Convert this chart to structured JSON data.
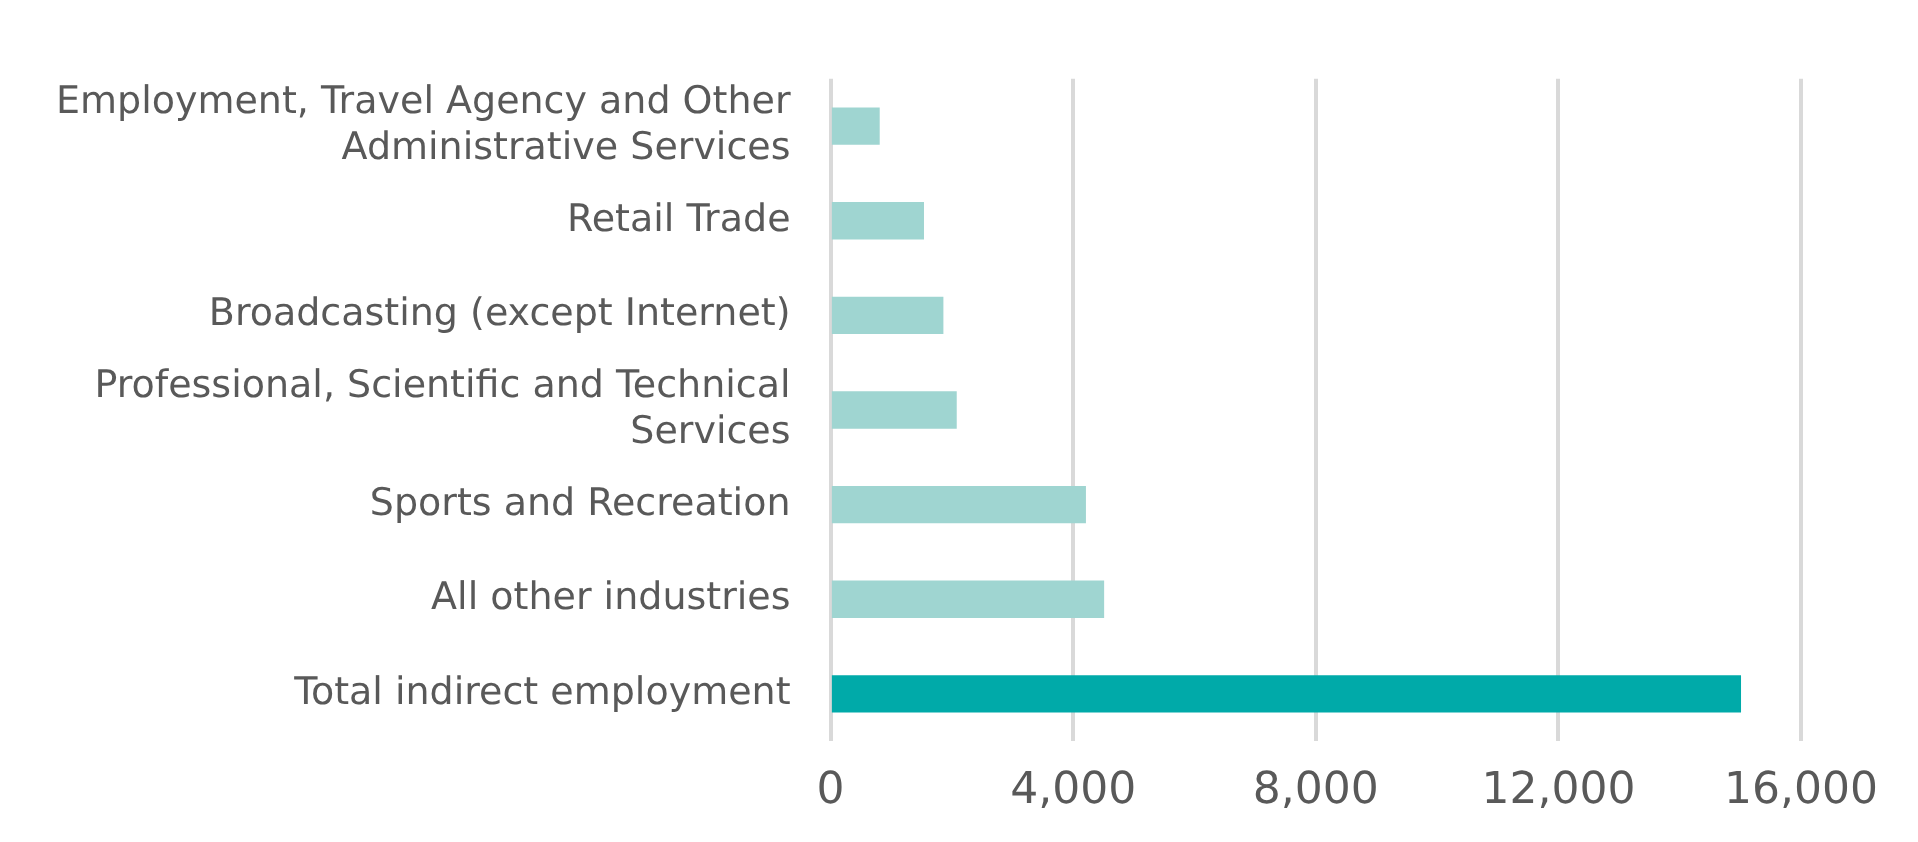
{
  "chart_data": {
    "type": "bar",
    "orientation": "horizontal",
    "categories": [
      "Employment, Travel Agency and Other Administrative Services",
      "Retail Trade",
      "Broadcasting (except Internet)",
      "Professional, Scientific and Technical Services",
      "Sports and Recreation",
      "All other industries",
      "Total indirect employment"
    ],
    "values": [
      800,
      1530,
      1850,
      2070,
      4200,
      4500,
      15000
    ],
    "colors": [
      "#9fd5d1",
      "#9fd5d1",
      "#9fd5d1",
      "#9fd5d1",
      "#9fd5d1",
      "#9fd5d1",
      "#00aaa9"
    ],
    "xlim": [
      0,
      16000
    ],
    "xticks": [
      0,
      {
        "value": 4000,
        "label": "4,000"
      },
      {
        "value": 8000,
        "label": "8,000"
      },
      {
        "value": 12000,
        "label": "12,000"
      },
      {
        "value": 16000,
        "label": "16,000"
      }
    ],
    "grid": "x",
    "legend": false
  }
}
